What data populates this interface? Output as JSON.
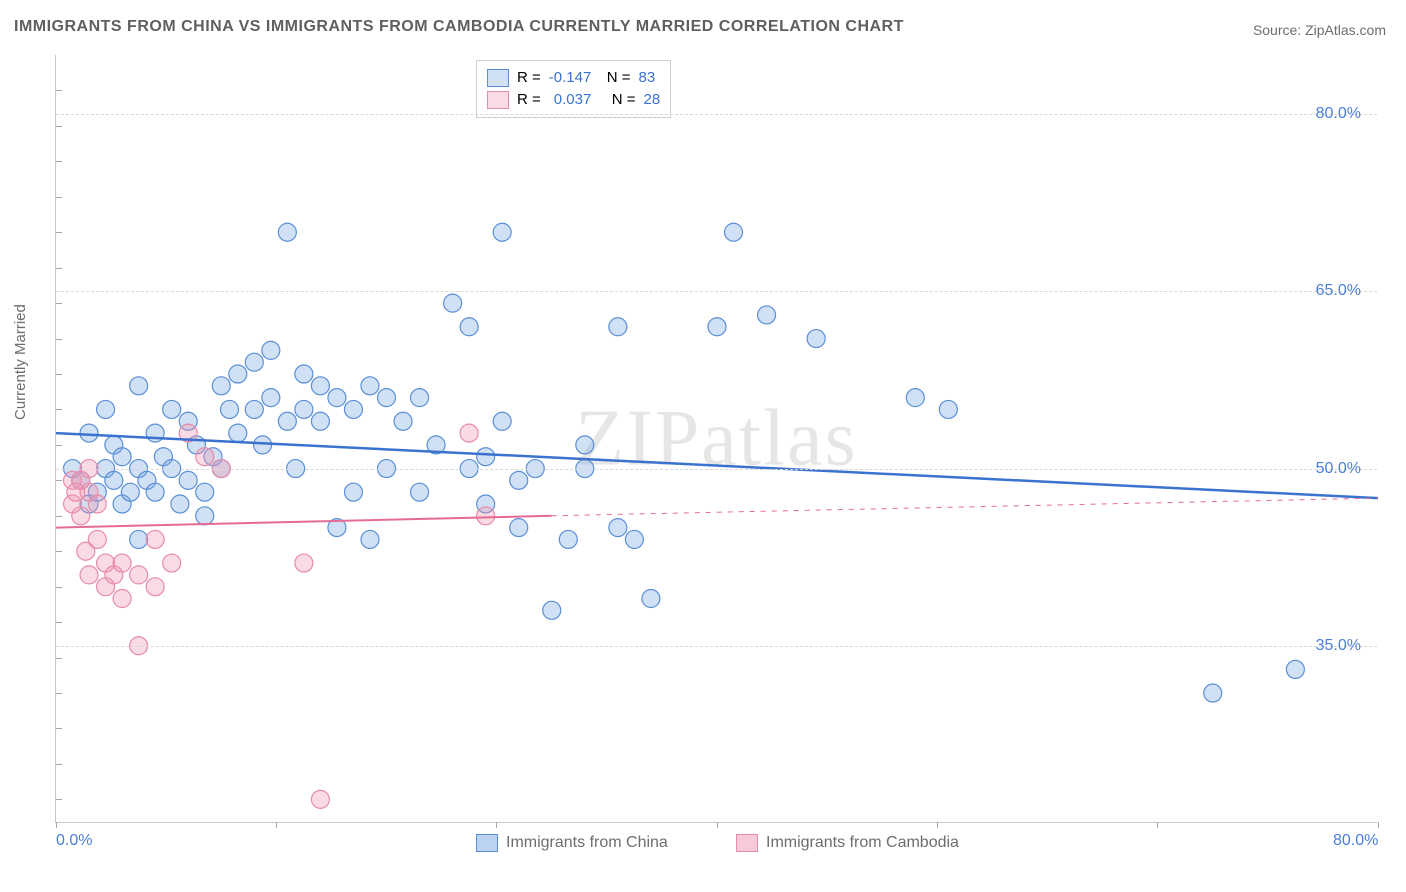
{
  "title": "IMMIGRANTS FROM CHINA VS IMMIGRANTS FROM CAMBODIA CURRENTLY MARRIED CORRELATION CHART",
  "source": "Source: ZipAtlas.com",
  "watermark": "ZIPatlas",
  "y_axis_label": "Currently Married",
  "chart": {
    "type": "scatter",
    "x_range": [
      0,
      80
    ],
    "y_range": [
      20,
      85
    ],
    "x_ticks": [
      0,
      13.3,
      26.6,
      40,
      53.3,
      66.6,
      80
    ],
    "x_tick_labels_shown": {
      "0": "0.0%",
      "80": "80.0%"
    },
    "y_gridlines": [
      35,
      50,
      65,
      80
    ],
    "y_tick_labels": {
      "35": "35.0%",
      "50": "50.0%",
      "65": "65.0%",
      "80": "80.0%"
    },
    "y_minor_ticks": [
      22,
      25,
      28,
      31,
      34,
      37,
      40,
      43,
      46,
      49,
      52,
      55,
      58,
      61,
      64,
      67,
      70,
      73,
      76,
      79,
      82
    ],
    "background_color": "#ffffff",
    "grid_color": "#d8d8d8",
    "axis_color": "#c8c8c8",
    "label_color": "#4a7fd8",
    "marker_radius": 9,
    "marker_stroke_width": 1.2,
    "series": [
      {
        "name": "Immigrants from China",
        "fill": "rgba(120,165,225,0.35)",
        "stroke": "#5a8fd6",
        "line_color": "#3a72cf",
        "line_width": 2.5,
        "dash": "none",
        "R": "-0.147",
        "N": "83",
        "trend": {
          "x1": 0,
          "y1": 53,
          "x2": 80,
          "y2": 47.5
        },
        "points": [
          [
            1,
            50
          ],
          [
            1.5,
            49
          ],
          [
            2,
            47
          ],
          [
            2,
            53
          ],
          [
            2.5,
            48
          ],
          [
            3,
            50
          ],
          [
            3,
            55
          ],
          [
            3.5,
            49
          ],
          [
            3.5,
            52
          ],
          [
            4,
            47
          ],
          [
            4,
            51
          ],
          [
            4.5,
            48
          ],
          [
            5,
            44
          ],
          [
            5,
            50
          ],
          [
            5,
            57
          ],
          [
            5.5,
            49
          ],
          [
            6,
            48
          ],
          [
            6,
            53
          ],
          [
            6.5,
            51
          ],
          [
            7,
            50
          ],
          [
            7,
            55
          ],
          [
            7.5,
            47
          ],
          [
            8,
            49
          ],
          [
            8,
            54
          ],
          [
            8.5,
            52
          ],
          [
            9,
            46
          ],
          [
            9,
            48
          ],
          [
            9.5,
            51
          ],
          [
            10,
            50
          ],
          [
            10,
            57
          ],
          [
            10.5,
            55
          ],
          [
            11,
            53
          ],
          [
            11,
            58
          ],
          [
            12,
            55
          ],
          [
            12,
            59
          ],
          [
            12.5,
            52
          ],
          [
            13,
            56
          ],
          [
            13,
            60
          ],
          [
            14,
            54
          ],
          [
            14,
            70
          ],
          [
            14.5,
            50
          ],
          [
            15,
            55
          ],
          [
            15,
            58
          ],
          [
            16,
            54
          ],
          [
            16,
            57
          ],
          [
            17,
            45
          ],
          [
            17,
            56
          ],
          [
            18,
            48
          ],
          [
            18,
            55
          ],
          [
            19,
            44
          ],
          [
            19,
            57
          ],
          [
            20,
            50
          ],
          [
            20,
            56
          ],
          [
            21,
            54
          ],
          [
            22,
            48
          ],
          [
            22,
            56
          ],
          [
            23,
            52
          ],
          [
            24,
            64
          ],
          [
            25,
            50
          ],
          [
            25,
            62
          ],
          [
            26,
            47
          ],
          [
            26,
            51
          ],
          [
            27,
            70
          ],
          [
            27,
            54
          ],
          [
            28,
            49
          ],
          [
            28,
            45
          ],
          [
            29,
            50
          ],
          [
            30,
            38
          ],
          [
            31,
            44
          ],
          [
            32,
            50
          ],
          [
            32,
            52
          ],
          [
            34,
            62
          ],
          [
            34,
            45
          ],
          [
            35,
            44
          ],
          [
            36,
            39
          ],
          [
            40,
            62
          ],
          [
            41,
            70
          ],
          [
            43,
            63
          ],
          [
            46,
            61
          ],
          [
            52,
            56
          ],
          [
            70,
            31
          ],
          [
            75,
            33
          ],
          [
            54,
            55
          ]
        ]
      },
      {
        "name": "Immigrants from Cambodia",
        "fill": "rgba(240,150,175,0.35)",
        "stroke": "#e78bab",
        "line_color": "#e56b95",
        "line_width": 2,
        "dash": "solid_then_dash",
        "R": "0.037",
        "N": "28",
        "trend_solid": {
          "x1": 0,
          "y1": 45,
          "x2": 30,
          "y2": 46
        },
        "trend_dash": {
          "x1": 30,
          "y1": 46,
          "x2": 80,
          "y2": 47.5
        },
        "points": [
          [
            1,
            47
          ],
          [
            1,
            49
          ],
          [
            1.2,
            48
          ],
          [
            1.5,
            46
          ],
          [
            1.5,
            49
          ],
          [
            1.8,
            43
          ],
          [
            2,
            41
          ],
          [
            2,
            48
          ],
          [
            2,
            50
          ],
          [
            2.5,
            47
          ],
          [
            2.5,
            44
          ],
          [
            3,
            42
          ],
          [
            3,
            40
          ],
          [
            3.5,
            41
          ],
          [
            4,
            39
          ],
          [
            4,
            42
          ],
          [
            5,
            35
          ],
          [
            5,
            41
          ],
          [
            6,
            40
          ],
          [
            6,
            44
          ],
          [
            7,
            42
          ],
          [
            8,
            53
          ],
          [
            9,
            51
          ],
          [
            10,
            50
          ],
          [
            15,
            42
          ],
          [
            16,
            22
          ],
          [
            25,
            53
          ],
          [
            26,
            46
          ]
        ]
      }
    ]
  },
  "legend_top": {
    "R_label": "R =",
    "N_label": "N =",
    "stat_color": "#3a72cf",
    "text_color": "#6d6d6d"
  },
  "legend_bottom": [
    {
      "label": "Immigrants from China",
      "fill": "rgba(120,165,225,0.5)",
      "stroke": "#5a8fd6"
    },
    {
      "label": "Immigrants from Cambodia",
      "fill": "rgba(240,150,175,0.5)",
      "stroke": "#e78bab"
    }
  ]
}
